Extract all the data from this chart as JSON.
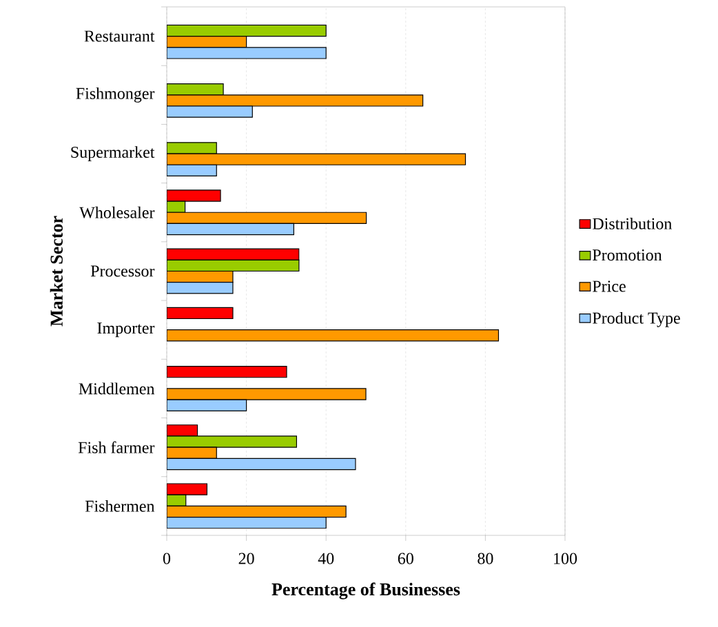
{
  "chart_data": {
    "type": "bar",
    "orientation": "horizontal",
    "xlabel": "Percentage of Businesses",
    "ylabel": "Market Sector",
    "categories": [
      "Restaurant",
      "Fishmonger",
      "Supermarket",
      "Wholesaler",
      "Processor",
      "Importer",
      "Middlemen",
      "Fish farmer",
      "Fishermen"
    ],
    "series": [
      {
        "name": "Distribution",
        "color": "#ff0000",
        "values": [
          null,
          null,
          null,
          13.5,
          33.2,
          16.6,
          30.1,
          7.7,
          10.1
        ]
      },
      {
        "name": "Promotion",
        "color": "#99cc00",
        "values": [
          40,
          14.2,
          12.5,
          4.6,
          33.2,
          null,
          null,
          32.6,
          4.8
        ]
      },
      {
        "name": "Price",
        "color": "#ff9900",
        "values": [
          20,
          64.3,
          75,
          50.1,
          16.6,
          83.3,
          50,
          12.5,
          45
        ]
      },
      {
        "name": "Product Type",
        "color": "#99ccff",
        "values": [
          40,
          21.5,
          12.5,
          31.9,
          16.6,
          null,
          20,
          47.4,
          40
        ]
      }
    ],
    "xlim": [
      0,
      100
    ],
    "xticks": [
      0,
      20,
      40,
      60,
      80,
      100
    ],
    "grid": "x",
    "legend": "right"
  }
}
